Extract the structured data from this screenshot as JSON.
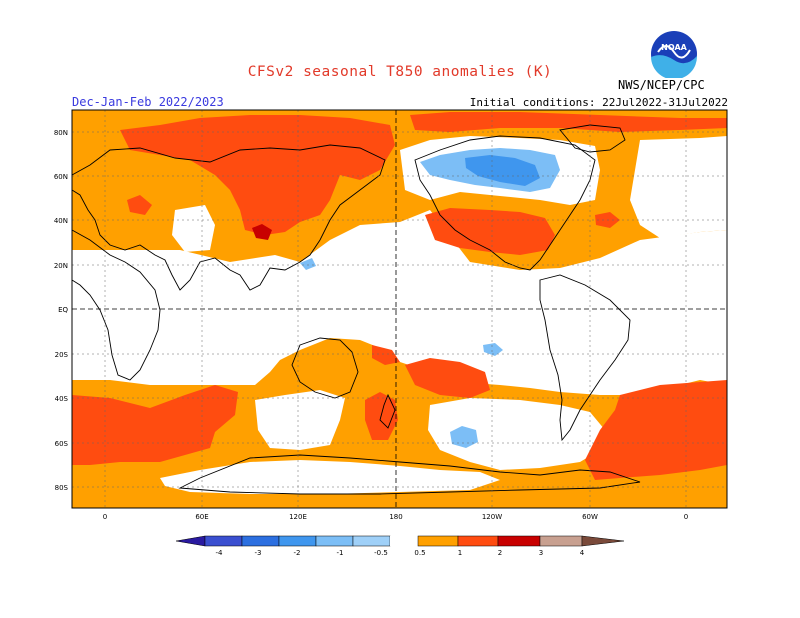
{
  "header": {
    "title": "CFSv2 seasonal T850 anomalies (K)",
    "period": "Dec-Jan-Feb 2022/2023",
    "initial_conditions": "Initial conditions: 22Jul2022-31Jul2022",
    "agency": "NWS/NCEP/CPC",
    "logo_text": "NOAA"
  },
  "map": {
    "lat_labels": [
      "80N",
      "60N",
      "40N",
      "20N",
      "EQ",
      "20S",
      "40S",
      "60S",
      "80S"
    ],
    "lon_labels": [
      "0",
      "60E",
      "120E",
      "180",
      "120W",
      "60W",
      "0"
    ]
  },
  "colorbar": {
    "labels": [
      "-4",
      "-3",
      "-2",
      "-1",
      "-0.5",
      "0.5",
      "1",
      "2",
      "3",
      "4"
    ],
    "colors": [
      "#2a1aa0",
      "#3a4fd0",
      "#2c6fe0",
      "#3f96ee",
      "#7cbef6",
      "#ffffff",
      "#ffa000",
      "#ff4c10",
      "#c80000",
      "#8a0000",
      "#c8a090",
      "#7a4a3a"
    ]
  },
  "legend_colors": {
    "warm_05_1": "#ffa000",
    "warm_1_2": "#ff4c10",
    "warm_2_3": "#c80000",
    "cold_m1_m05": "#7cbef6",
    "cold_m2_m1": "#3f96ee"
  }
}
